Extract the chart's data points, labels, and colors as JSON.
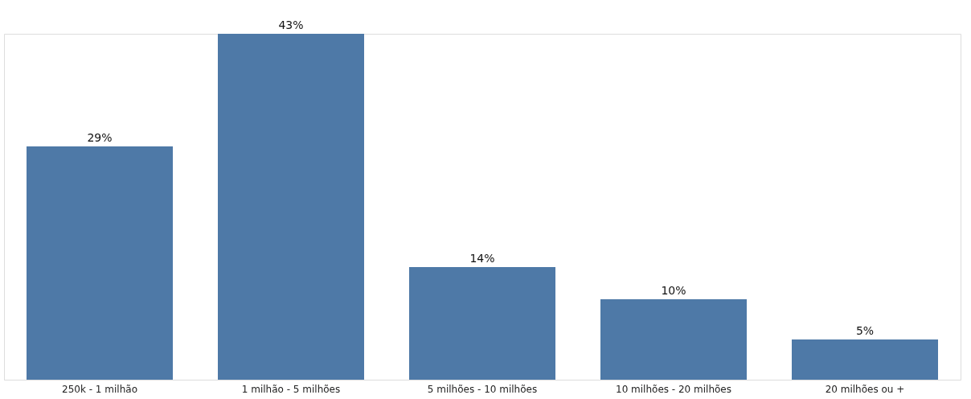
{
  "chart_data": {
    "type": "bar",
    "categories": [
      "250k - 1 milhão",
      "1 milhão - 5 milhões",
      "5 milhões - 10 milhões",
      "10 milhões - 20 milhões",
      "20 milhões ou +"
    ],
    "values": [
      29,
      43,
      14,
      10,
      5
    ],
    "value_labels": [
      "29%",
      "43%",
      "14%",
      "10%",
      "5%"
    ],
    "color": "#4e79a7",
    "grid": false,
    "tick_labels": "x"
  }
}
